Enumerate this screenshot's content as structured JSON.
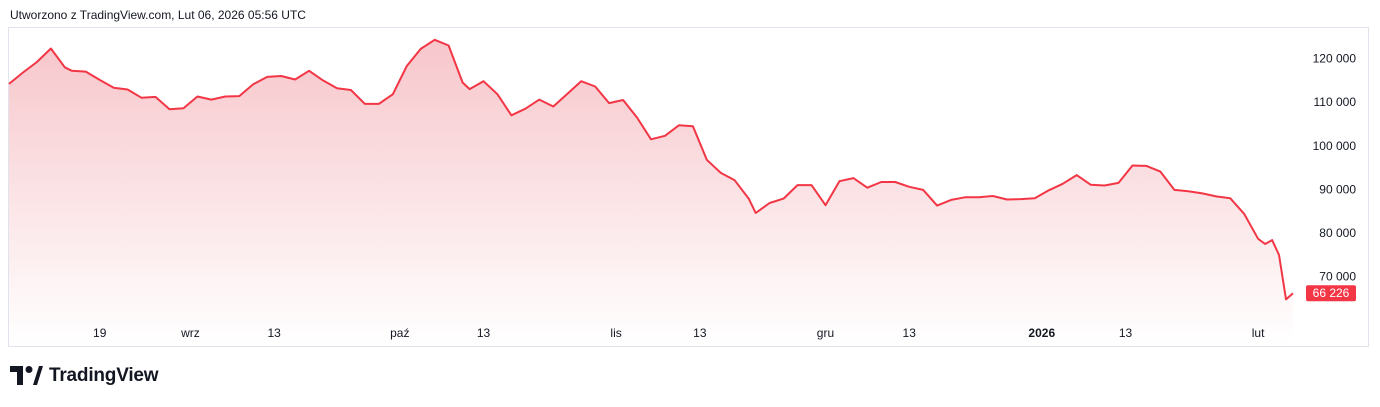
{
  "header": {
    "created_text": "Utworzono z TradingView.com, Lut 06, 2026 05:56 UTC"
  },
  "brand": {
    "name": "TradingView",
    "logo_icon": "tradingview-logo-icon"
  },
  "colors": {
    "line": "#f23645",
    "fill_top": "#f7c6cb",
    "fill_bottom": "#ffffff",
    "badge": "#f23645",
    "border": "#e0e3eb"
  },
  "chart_data": {
    "type": "area",
    "title": "",
    "xlabel": "",
    "ylabel": "",
    "x_tick_labels": [
      {
        "label": "19",
        "bold": false
      },
      {
        "label": "wrz",
        "bold": false
      },
      {
        "label": "13",
        "bold": false
      },
      {
        "label": "paź",
        "bold": false
      },
      {
        "label": "13",
        "bold": false
      },
      {
        "label": "lis",
        "bold": false
      },
      {
        "label": "13",
        "bold": false
      },
      {
        "label": "gru",
        "bold": false
      },
      {
        "label": "13",
        "bold": false
      },
      {
        "label": "2026",
        "bold": true
      },
      {
        "label": "13",
        "bold": false
      },
      {
        "label": "lut",
        "bold": false
      }
    ],
    "y_ticks": [
      70000,
      80000,
      90000,
      100000,
      110000,
      120000
    ],
    "y_tick_labels": [
      "70 000",
      "80 000",
      "90 000",
      "100 000",
      "110 000",
      "120 000"
    ],
    "ylim": [
      61000,
      127000
    ],
    "last_price_label": "66 226",
    "last_price": 66226,
    "grid": false,
    "series": [
      {
        "x": [
          "2025-08-06",
          "2025-08-08",
          "2025-08-10",
          "2025-08-12",
          "2025-08-14",
          "2025-08-15",
          "2025-08-17",
          "2025-08-19",
          "2025-08-21",
          "2025-08-23",
          "2025-08-25",
          "2025-08-27",
          "2025-08-29",
          "2025-08-31",
          "2025-09-02",
          "2025-09-04",
          "2025-09-06",
          "2025-09-08",
          "2025-09-10",
          "2025-09-12",
          "2025-09-14",
          "2025-09-16",
          "2025-09-18",
          "2025-09-20",
          "2025-09-22",
          "2025-09-24",
          "2025-09-26",
          "2025-09-28",
          "2025-09-30",
          "2025-10-02",
          "2025-10-04",
          "2025-10-06",
          "2025-10-08",
          "2025-10-10",
          "2025-10-11",
          "2025-10-13",
          "2025-10-15",
          "2025-10-17",
          "2025-10-19",
          "2025-10-21",
          "2025-10-23",
          "2025-10-25",
          "2025-10-27",
          "2025-10-29",
          "2025-10-31",
          "2025-11-02",
          "2025-11-04",
          "2025-11-06",
          "2025-11-08",
          "2025-11-10",
          "2025-11-12",
          "2025-11-14",
          "2025-11-16",
          "2025-11-18",
          "2025-11-20",
          "2025-11-21",
          "2025-11-23",
          "2025-11-25",
          "2025-11-27",
          "2025-11-29",
          "2025-12-01",
          "2025-12-03",
          "2025-12-05",
          "2025-12-07",
          "2025-12-09",
          "2025-12-11",
          "2025-12-13",
          "2025-12-15",
          "2025-12-17",
          "2025-12-19",
          "2025-12-21",
          "2025-12-23",
          "2025-12-25",
          "2025-12-27",
          "2025-12-29",
          "2025-12-31",
          "2026-01-02",
          "2026-01-04",
          "2026-01-06",
          "2026-01-08",
          "2026-01-10",
          "2026-01-12",
          "2026-01-14",
          "2026-01-16",
          "2026-01-18",
          "2026-01-20",
          "2026-01-22",
          "2026-01-24",
          "2026-01-26",
          "2026-01-28",
          "2026-01-30",
          "2026-02-01",
          "2026-02-02",
          "2026-02-03",
          "2026-02-04",
          "2026-02-05",
          "2026-02-06"
        ],
        "values": [
          114200,
          116800,
          119200,
          122300,
          118000,
          117200,
          117000,
          115100,
          113300,
          112900,
          111000,
          111200,
          108400,
          108600,
          111300,
          110600,
          111300,
          111400,
          114100,
          115800,
          116000,
          115200,
          117200,
          115000,
          113200,
          112800,
          109600,
          109600,
          111800,
          118300,
          122200,
          124300,
          123000,
          114500,
          113000,
          114800,
          111800,
          107000,
          108500,
          110600,
          109000,
          111900,
          114800,
          113600,
          109800,
          110500,
          106500,
          101500,
          102300,
          104700,
          104500,
          96800,
          93800,
          92100,
          87900,
          84600,
          86900,
          87900,
          91000,
          91000,
          86400,
          91900,
          92600,
          90400,
          91700,
          91700,
          90600,
          89900,
          86300,
          87600,
          88200,
          88200,
          88500,
          87700,
          87800,
          88000,
          89800,
          91300,
          93300,
          91100,
          90900,
          91500,
          95500,
          95400,
          94100,
          89900,
          89600,
          89100,
          88400,
          88000,
          84400,
          78700,
          77500,
          78400,
          75000,
          64800,
          66226
        ]
      }
    ]
  }
}
